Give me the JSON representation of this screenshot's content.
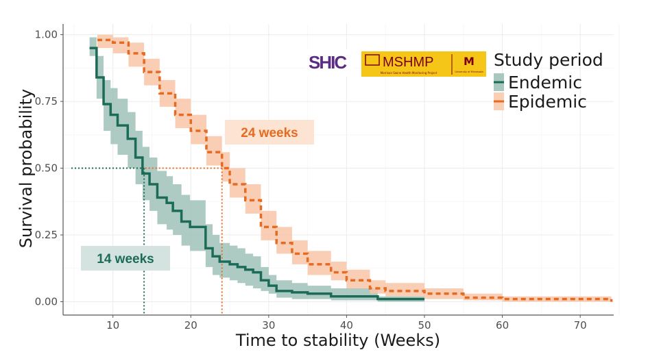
{
  "chart_data": {
    "type": "line",
    "subtype": "kaplan-meier step curves with confidence bands",
    "xlabel": "Time to stability (Weeks)",
    "ylabel": "Survival probability",
    "xlim": [
      3.6,
      74.3
    ],
    "ylim": [
      -0.05,
      1.04
    ],
    "xticks": [
      10,
      20,
      30,
      40,
      50,
      60,
      70
    ],
    "xtick_labels": [
      "10",
      "20",
      "30",
      "40",
      "50",
      "60",
      "70"
    ],
    "yticks": [
      0,
      0.25,
      0.5,
      0.75,
      1.0
    ],
    "ytick_labels": [
      "0.00",
      "0.25",
      "0.50",
      "0.75",
      "1.00"
    ],
    "grid": true,
    "legend": {
      "title": "Study period",
      "placement": "top-right"
    },
    "series": [
      {
        "name": "Endemic",
        "color": "#1b6b56",
        "band_color": "#9fc2b8",
        "line_style": "solid",
        "x": [
          7,
          7.9,
          8.8,
          9.7,
          10.6,
          11.9,
          12.9,
          13.8,
          14.7,
          15.7,
          16.9,
          17.7,
          18.8,
          19.9,
          21.9,
          22.8,
          23.7,
          25,
          26,
          27,
          28,
          29,
          30,
          31,
          33,
          35,
          38,
          44,
          50
        ],
        "y": [
          0.95,
          0.84,
          0.74,
          0.7,
          0.66,
          0.61,
          0.54,
          0.48,
          0.44,
          0.39,
          0.37,
          0.34,
          0.3,
          0.28,
          0.2,
          0.17,
          0.15,
          0.14,
          0.13,
          0.12,
          0.11,
          0.08,
          0.06,
          0.04,
          0.035,
          0.03,
          0.02,
          0.01,
          0.01
        ],
        "lower": [
          0.92,
          0.76,
          0.64,
          0.59,
          0.55,
          0.5,
          0.44,
          0.38,
          0.34,
          0.29,
          0.27,
          0.25,
          0.21,
          0.19,
          0.13,
          0.1,
          0.09,
          0.08,
          0.07,
          0.06,
          0.05,
          0.04,
          0.03,
          0.015,
          0.01,
          0.01,
          0.005,
          0.0,
          0.0
        ],
        "upper": [
          0.99,
          0.92,
          0.83,
          0.8,
          0.76,
          0.71,
          0.64,
          0.58,
          0.54,
          0.49,
          0.47,
          0.44,
          0.4,
          0.38,
          0.29,
          0.25,
          0.22,
          0.21,
          0.2,
          0.18,
          0.17,
          0.13,
          0.1,
          0.08,
          0.07,
          0.06,
          0.05,
          0.02,
          0.02
        ]
      },
      {
        "name": "Epidemic",
        "color": "#e66a1f",
        "band_color": "#f8c6a8",
        "line_style": "dashed",
        "x": [
          8,
          10,
          12,
          14,
          16,
          18,
          20,
          22,
          24,
          25,
          27,
          29,
          31,
          33,
          35,
          38,
          40,
          43,
          45,
          50,
          55,
          60,
          72,
          74
        ],
        "y": [
          0.98,
          0.97,
          0.93,
          0.86,
          0.78,
          0.7,
          0.64,
          0.56,
          0.5,
          0.44,
          0.38,
          0.28,
          0.22,
          0.18,
          0.14,
          0.11,
          0.08,
          0.05,
          0.04,
          0.03,
          0.015,
          0.01,
          0.01,
          0.0
        ],
        "lower": [
          0.95,
          0.93,
          0.88,
          0.81,
          0.73,
          0.65,
          0.59,
          0.51,
          0.45,
          0.39,
          0.33,
          0.23,
          0.18,
          0.14,
          0.1,
          0.08,
          0.05,
          0.03,
          0.02,
          0.01,
          0.005,
          0.0,
          0.0,
          0.0
        ],
        "upper": [
          1.0,
          0.99,
          0.97,
          0.91,
          0.83,
          0.76,
          0.7,
          0.62,
          0.56,
          0.5,
          0.44,
          0.34,
          0.28,
          0.23,
          0.19,
          0.15,
          0.12,
          0.08,
          0.07,
          0.05,
          0.03,
          0.02,
          0.02,
          0.01
        ]
      }
    ],
    "medians": [
      {
        "series": "Endemic",
        "x": 14,
        "y": 0.5,
        "label": "14 weeks"
      },
      {
        "series": "Epidemic",
        "x": 24,
        "y": 0.5,
        "label": "24 weeks"
      }
    ]
  },
  "logos": {
    "shic": {
      "text": "SHIC",
      "color": "#5b2d82"
    },
    "mshmp": {
      "text": "MSHMP",
      "subtitle": "Morrison Swine Health Monitoring Project",
      "university": "University of Minnesota",
      "bg": "#f5c518",
      "fg": "#7a0019"
    }
  }
}
